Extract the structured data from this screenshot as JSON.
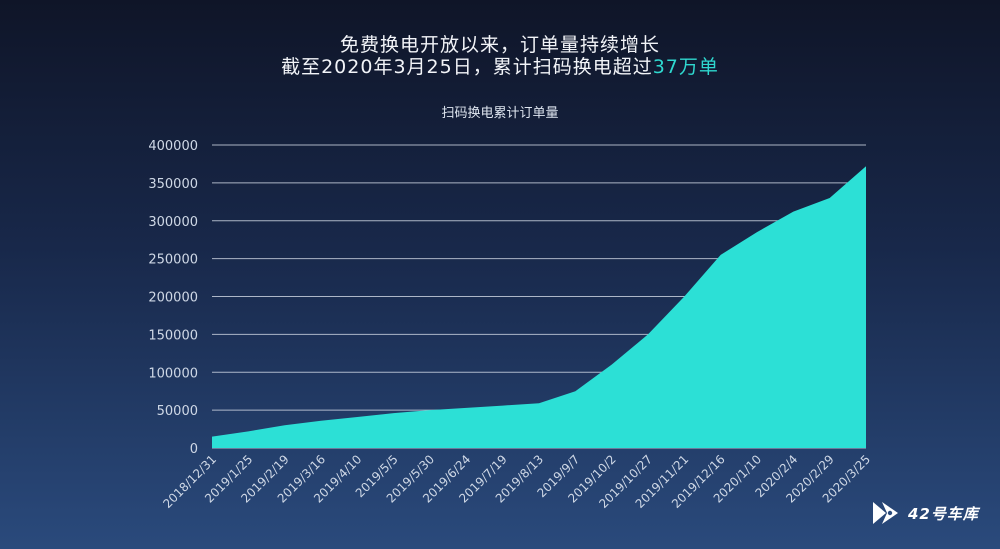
{
  "header": {
    "line1": "免费换电开放以来，订单量持续增长",
    "line2_prefix": "截至2020年3月25日，累计扫码换电超过",
    "line2_highlight": "37万单",
    "highlight_color": "#2fd8cf"
  },
  "brand": {
    "text": "42号车库",
    "icon": "play-logo-icon"
  },
  "chart_data": {
    "type": "area",
    "title": "扫码换电累计订单量",
    "xlabel": "",
    "ylabel": "",
    "ylim": [
      0,
      400000
    ],
    "yticks": [
      400000,
      350000,
      300000,
      250000,
      200000,
      150000,
      100000,
      50000,
      0
    ],
    "grid": true,
    "fill_color": "#2ce0d6",
    "categories": [
      "2018/12/31",
      "2019/1/25",
      "2019/2/19",
      "2019/3/16",
      "2019/4/10",
      "2019/5/5",
      "2019/5/30",
      "2019/6/24",
      "2019/7/19",
      "2019/8/13",
      "2019/9/7",
      "2019/10/2",
      "2019/10/27",
      "2019/11/21",
      "2019/12/16",
      "2020/1/10",
      "2020/2/4",
      "2020/2/29",
      "2020/3/25"
    ],
    "values": [
      15000,
      22000,
      30000,
      36000,
      41000,
      46000,
      50000,
      53000,
      56000,
      59000,
      75000,
      110000,
      150000,
      200000,
      255000,
      285000,
      312000,
      330000,
      372000
    ]
  }
}
